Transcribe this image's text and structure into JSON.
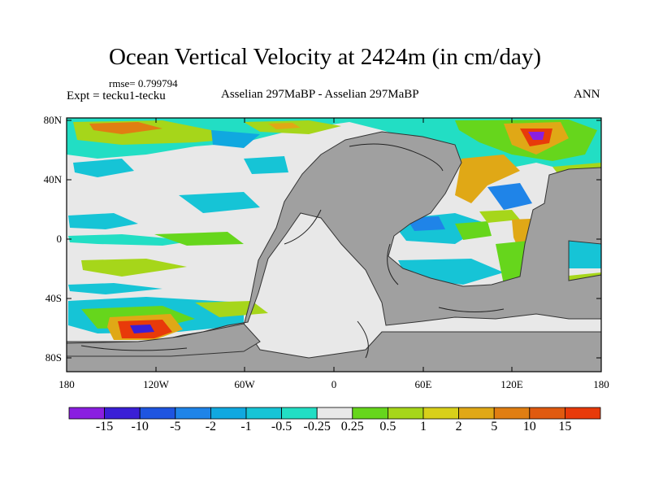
{
  "title": "Ocean Vertical Velocity at 2424m (in cm/day)",
  "rmse": "rmse= 0.799794",
  "expt": "Expt = tecku1-tecku",
  "subtitle": "Asselian 297MaBP - Asselian 297MaBP",
  "season": "ANN",
  "axes": {
    "lat_labels": [
      "80N",
      "40N",
      "0",
      "40S",
      "80S"
    ],
    "lon_labels": [
      "180",
      "120W",
      "60W",
      "0",
      "60E",
      "120E",
      "180"
    ]
  },
  "colorbar": {
    "labels": [
      "-15",
      "-10",
      "-5",
      "-2",
      "-1",
      "-0.5",
      "-0.25",
      "0.25",
      "0.5",
      "1",
      "2",
      "5",
      "10",
      "15"
    ],
    "colors": [
      "#8a1fe0",
      "#3a1fd6",
      "#1f55e0",
      "#1f84e8",
      "#10a8e0",
      "#16c4d6",
      "#22dec4",
      "#e8e8e8",
      "#66d61c",
      "#a6d61a",
      "#d8d01a",
      "#e0a816",
      "#e07e12",
      "#e05a10",
      "#e83a0a"
    ]
  },
  "map": {
    "land_color": "#a0a0a0",
    "ocean_near_zero_color": "#e8e8e8"
  }
}
